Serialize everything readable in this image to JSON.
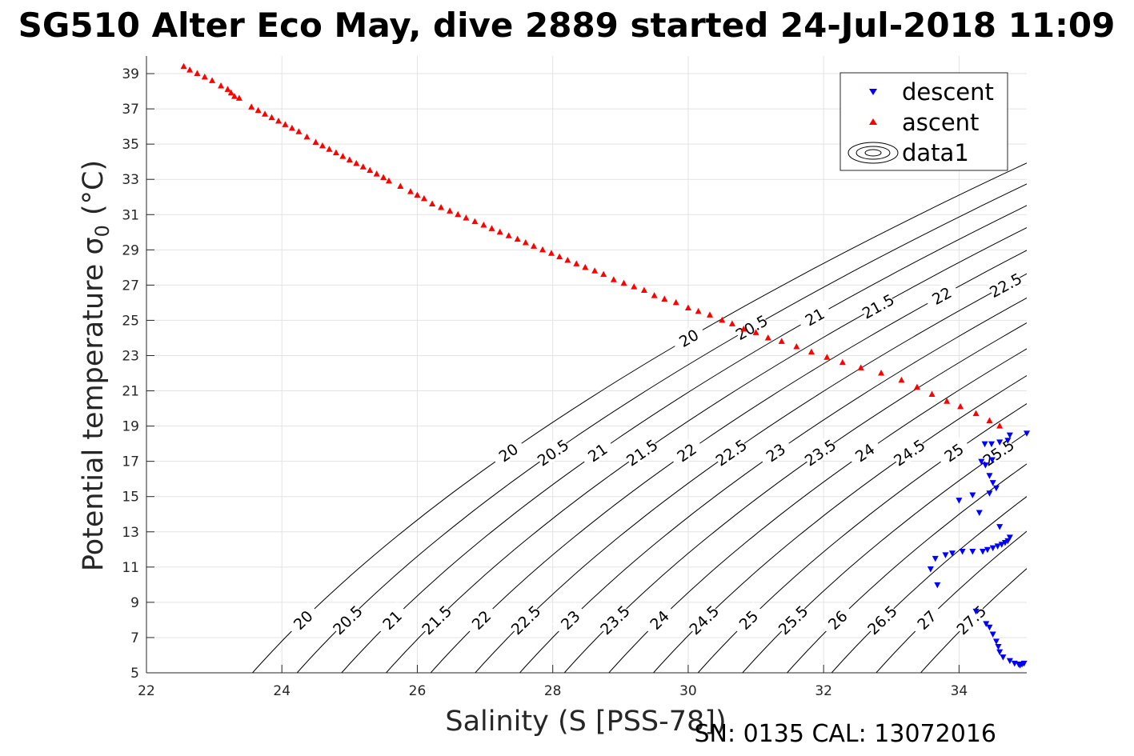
{
  "chart_data": {
    "type": "scatter",
    "title": "SG510 Alter Eco May, dive 2889 started 24-Jul-2018 11:09",
    "xlabel": "Salinity (S [PSS-78])",
    "ylabel": "Potential temperature σ",
    "ylabel_subscript": "0",
    "ylabel_unit": "(°C)",
    "footer": "SN: 0135  CAL: 13072016",
    "xlim": [
      22,
      35
    ],
    "ylim": [
      5,
      40
    ],
    "x_ticks": [
      22,
      24,
      26,
      28,
      30,
      32,
      34
    ],
    "y_ticks": [
      5,
      7,
      9,
      11,
      13,
      15,
      17,
      19,
      21,
      23,
      25,
      27,
      29,
      31,
      33,
      35,
      37,
      39
    ],
    "grid": true,
    "legend_position": "top-right",
    "legend": [
      "descent",
      "ascent",
      "data1"
    ],
    "colors": {
      "descent": "#0000ff",
      "ascent": "#ff0000",
      "contour": "#000000"
    },
    "series": [
      {
        "name": "descent",
        "marker": "triangle-down",
        "points": [
          [
            35.0,
            18.6
          ],
          [
            34.75,
            18.5
          ],
          [
            34.72,
            18.2
          ],
          [
            34.6,
            18.1
          ],
          [
            34.48,
            18.0
          ],
          [
            34.38,
            18.0
          ],
          [
            34.33,
            17.0
          ],
          [
            34.49,
            17.1
          ],
          [
            34.39,
            16.8
          ],
          [
            34.45,
            16.2
          ],
          [
            34.5,
            15.8
          ],
          [
            34.55,
            15.5
          ],
          [
            34.45,
            15.2
          ],
          [
            34.2,
            15.1
          ],
          [
            34.0,
            14.8
          ],
          [
            34.3,
            14.1
          ],
          [
            34.6,
            13.3
          ],
          [
            34.75,
            12.7
          ],
          [
            34.72,
            12.5
          ],
          [
            34.68,
            12.4
          ],
          [
            34.63,
            12.3
          ],
          [
            34.57,
            12.2
          ],
          [
            34.5,
            12.1
          ],
          [
            34.42,
            12.0
          ],
          [
            34.35,
            11.9
          ],
          [
            34.2,
            11.9
          ],
          [
            34.05,
            11.9
          ],
          [
            33.9,
            11.8
          ],
          [
            33.8,
            11.7
          ],
          [
            33.65,
            11.5
          ],
          [
            33.58,
            10.9
          ],
          [
            33.68,
            10.0
          ],
          [
            34.25,
            8.5
          ],
          [
            34.4,
            7.8
          ],
          [
            34.45,
            7.6
          ],
          [
            34.5,
            7.2
          ],
          [
            34.55,
            6.8
          ],
          [
            34.58,
            6.5
          ],
          [
            34.6,
            6.2
          ],
          [
            34.65,
            5.9
          ],
          [
            34.75,
            5.7
          ],
          [
            34.82,
            5.55
          ],
          [
            34.88,
            5.5
          ],
          [
            34.93,
            5.5
          ],
          [
            34.96,
            5.55
          ],
          [
            34.9,
            5.45
          ]
        ]
      },
      {
        "name": "ascent",
        "marker": "triangle-up",
        "points": [
          [
            22.55,
            39.4
          ],
          [
            22.64,
            39.2
          ],
          [
            22.75,
            39.0
          ],
          [
            22.86,
            38.8
          ],
          [
            22.97,
            38.6
          ],
          [
            23.1,
            38.3
          ],
          [
            23.2,
            38.1
          ],
          [
            23.25,
            37.9
          ],
          [
            23.3,
            37.7
          ],
          [
            23.37,
            37.6
          ],
          [
            23.55,
            37.1
          ],
          [
            23.65,
            36.9
          ],
          [
            23.75,
            36.7
          ],
          [
            23.85,
            36.5
          ],
          [
            23.95,
            36.3
          ],
          [
            24.05,
            36.1
          ],
          [
            24.15,
            35.9
          ],
          [
            24.25,
            35.7
          ],
          [
            24.37,
            35.4
          ],
          [
            24.5,
            35.1
          ],
          [
            24.6,
            34.9
          ],
          [
            24.7,
            34.7
          ],
          [
            24.8,
            34.5
          ],
          [
            24.9,
            34.3
          ],
          [
            25.0,
            34.1
          ],
          [
            25.1,
            33.9
          ],
          [
            25.2,
            33.7
          ],
          [
            25.3,
            33.5
          ],
          [
            25.4,
            33.3
          ],
          [
            25.5,
            33.1
          ],
          [
            25.58,
            32.9
          ],
          [
            25.75,
            32.6
          ],
          [
            25.9,
            32.3
          ],
          [
            26.0,
            32.1
          ],
          [
            26.1,
            31.9
          ],
          [
            26.22,
            31.6
          ],
          [
            26.35,
            31.4
          ],
          [
            26.48,
            31.2
          ],
          [
            26.6,
            31.0
          ],
          [
            26.72,
            30.8
          ],
          [
            26.85,
            30.6
          ],
          [
            26.98,
            30.4
          ],
          [
            27.1,
            30.2
          ],
          [
            27.22,
            30.0
          ],
          [
            27.35,
            29.8
          ],
          [
            27.48,
            29.6
          ],
          [
            27.6,
            29.4
          ],
          [
            27.72,
            29.2
          ],
          [
            27.85,
            29.0
          ],
          [
            27.98,
            28.8
          ],
          [
            28.1,
            28.6
          ],
          [
            28.22,
            28.4
          ],
          [
            28.35,
            28.2
          ],
          [
            28.48,
            28.0
          ],
          [
            28.62,
            27.8
          ],
          [
            28.75,
            27.6
          ],
          [
            28.9,
            27.3
          ],
          [
            29.05,
            27.1
          ],
          [
            29.2,
            26.9
          ],
          [
            29.35,
            26.7
          ],
          [
            29.5,
            26.4
          ],
          [
            29.65,
            26.2
          ],
          [
            29.82,
            26.0
          ],
          [
            30.0,
            25.7
          ],
          [
            30.15,
            25.5
          ],
          [
            30.32,
            25.3
          ],
          [
            30.5,
            25.0
          ],
          [
            30.65,
            24.8
          ],
          [
            30.82,
            24.5
          ],
          [
            31.0,
            24.3
          ],
          [
            31.18,
            24.0
          ],
          [
            31.38,
            23.8
          ],
          [
            31.6,
            23.5
          ],
          [
            31.82,
            23.2
          ],
          [
            32.05,
            22.9
          ],
          [
            32.28,
            22.6
          ],
          [
            32.55,
            22.3
          ],
          [
            32.85,
            22.0
          ],
          [
            33.15,
            21.6
          ],
          [
            33.38,
            21.2
          ],
          [
            33.6,
            20.8
          ],
          [
            33.82,
            20.4
          ],
          [
            34.02,
            20.1
          ],
          [
            34.25,
            19.7
          ],
          [
            34.45,
            19.3
          ],
          [
            34.6,
            19.0
          ]
        ]
      }
    ],
    "contours": {
      "name": "data1",
      "levels": [
        20,
        20.5,
        21,
        21.5,
        22,
        22.5,
        23,
        23.5,
        24,
        24.5,
        25,
        25.5,
        26,
        26.5,
        27,
        27.5
      ],
      "description": "potential density anomaly isopycnals"
    }
  }
}
